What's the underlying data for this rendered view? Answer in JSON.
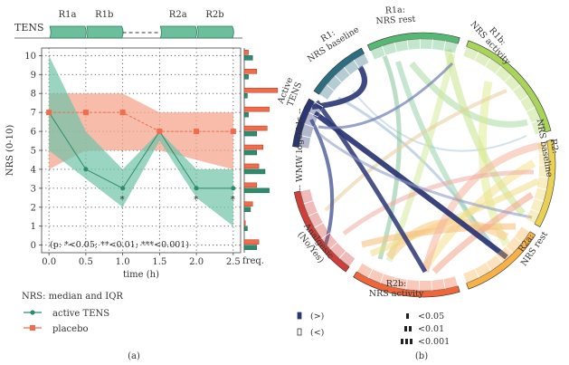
{
  "chart_data": [
    {
      "panel_label": "(a)",
      "type": "line",
      "title": "",
      "xlabel": "time (h)",
      "ylabel": "NRS (0-10)",
      "x": [
        0.0,
        0.5,
        1.0,
        1.5,
        2.0,
        2.5
      ],
      "x_tick_labels": [
        "0.0",
        "0.5",
        "1.0",
        "1.5",
        "2.0",
        "2.5"
      ],
      "y_ticks": [
        0,
        1,
        2,
        3,
        4,
        5,
        6,
        7,
        8,
        9,
        10
      ],
      "xlim": [
        -0.1,
        2.6
      ],
      "ylim": [
        -0.4,
        10.4
      ],
      "phases": {
        "label": "TENS",
        "segments": [
          {
            "name": "R1a",
            "x0": 0.0,
            "x1": 0.5
          },
          {
            "name": "R1b",
            "x0": 0.5,
            "x1": 1.0
          },
          {
            "name": "R2a",
            "x0": 1.5,
            "x1": 2.0
          },
          {
            "name": "R2b",
            "x0": 2.0,
            "x1": 2.5
          }
        ]
      },
      "series": [
        {
          "name": "active TENS",
          "color": "#2e8b6e",
          "band_color": "#6fc3a8",
          "median": [
            7,
            4,
            3,
            6,
            3,
            3
          ],
          "q1": [
            5,
            3.5,
            2,
            5.5,
            2.5,
            1
          ],
          "q3": [
            10,
            6,
            4,
            6,
            4,
            4
          ]
        },
        {
          "name": "placebo",
          "color": "#f26b4a",
          "band_color": "#f6a58e",
          "median": [
            7,
            7,
            7,
            6,
            6,
            6
          ],
          "q1": [
            4,
            5,
            5,
            5,
            4.5,
            4
          ],
          "q3": [
            8,
            8,
            8,
            7,
            7,
            7
          ]
        }
      ],
      "significance_marks": [
        {
          "x": 1.0,
          "text": "*"
        },
        {
          "x": 2.0,
          "text": "*"
        },
        {
          "x": 2.5,
          "text": "*"
        }
      ],
      "significance_legend": "(p: *<0.05; **<0.01; ***<0.001)",
      "legend": {
        "title": "NRS: median and IQR",
        "items": [
          "active TENS",
          "placebo"
        ]
      },
      "freq": {
        "label": "freq.",
        "levels": [
          0,
          1,
          2,
          3,
          4,
          5,
          6,
          7,
          8,
          9,
          10
        ],
        "active": [
          12,
          3,
          6,
          24,
          20,
          12,
          12,
          4,
          3,
          4,
          8
        ],
        "placebo": [
          14,
          1,
          8,
          12,
          14,
          18,
          22,
          24,
          32,
          12,
          4
        ]
      }
    },
    {
      "panel_label": "(b)",
      "type": "chord",
      "sectors": [
        {
          "name": "Active TENS",
          "color": "#2b3674"
        },
        {
          "name": "R1: NRS baseline",
          "color": "#2c6e80"
        },
        {
          "name": "R1a: NRS rest",
          "color": "#55b873"
        },
        {
          "name": "R1b: NRS activity",
          "color": "#a8d45a"
        },
        {
          "name": "R2: NRS baseline",
          "color": "#ead055"
        },
        {
          "name": "R2a: NRS rest",
          "color": "#f7b147"
        },
        {
          "name": "R2b: NRS activity",
          "color": "#f0663b"
        },
        {
          "name": "Analgesic (No/Yes)",
          "color": "#cf3f3a"
        }
      ],
      "axis_label": "WMW logOdds",
      "legend": {
        "direction": [
          {
            "symbol": "filled",
            "text": "(>)"
          },
          {
            "symbol": "open",
            "text": "(<)"
          }
        ],
        "significance": [
          "<0.05",
          "<0.01",
          "<0.001"
        ]
      }
    }
  ]
}
